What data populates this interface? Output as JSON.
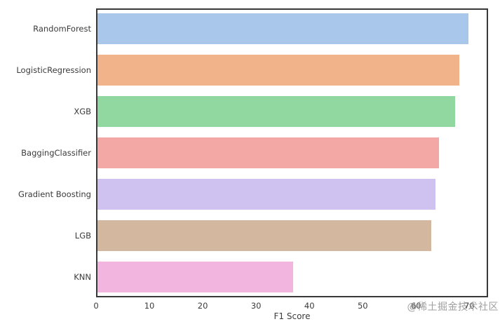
{
  "figure": {
    "background": "#ffffff",
    "border_color": "#383838",
    "text_color": "#3b3b3b"
  },
  "chart_data": {
    "type": "bar",
    "orientation": "horizontal",
    "xlabel": "F1 Score",
    "categories": [
      "RandomForest",
      "LogisticRegression",
      "XGB",
      "BaggingClassifier",
      "Gradient Boosting",
      "LGB",
      "KNN"
    ],
    "values": [
      70.0,
      68.4,
      67.5,
      64.5,
      63.8,
      63.0,
      37.0
    ],
    "bar_colors": [
      "#a8c7ea",
      "#f1b389",
      "#90d8a0",
      "#f4a8a6",
      "#cfc2f0",
      "#d4b79f",
      "#f2b5e0"
    ],
    "x_ticks": [
      0,
      10,
      20,
      30,
      40,
      50,
      60,
      70
    ],
    "xlim": [
      0,
      73.5
    ],
    "grid": false,
    "legend": null
  },
  "watermark": {
    "text": "@稀土掘金技术社区",
    "color": "#9f9f9f"
  }
}
